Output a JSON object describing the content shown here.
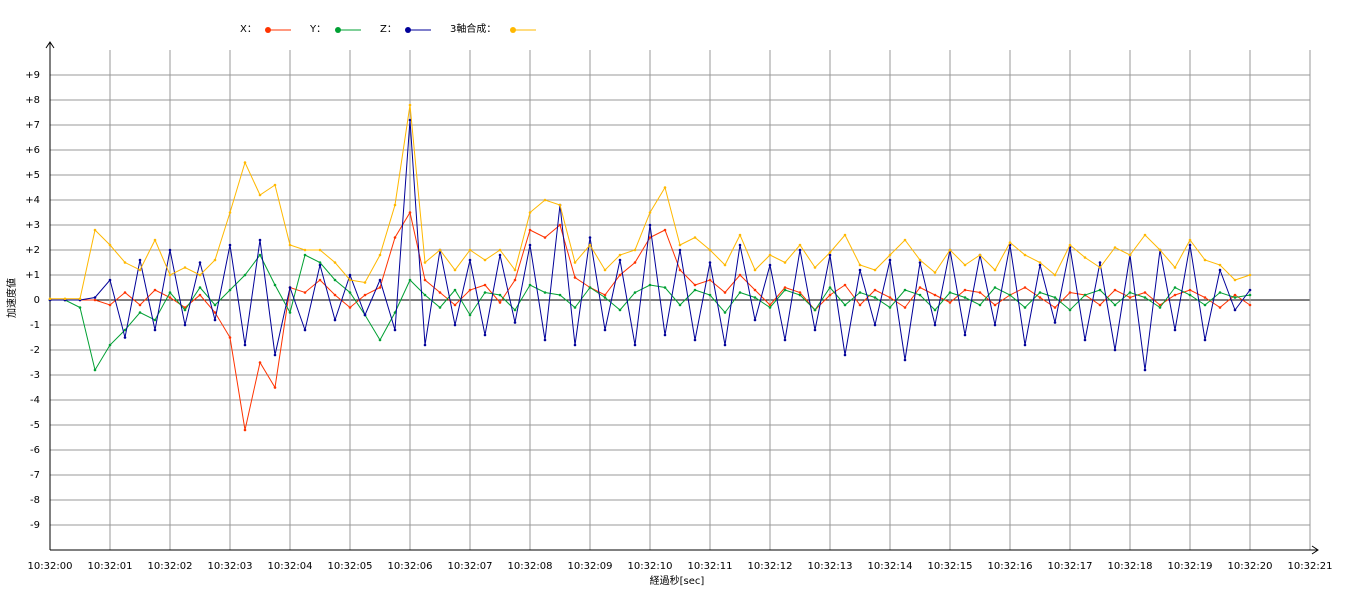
{
  "chart_data": {
    "type": "line",
    "xlabel": "経過秒[sec]",
    "ylabel": "加速度値",
    "x": [
      0,
      0.25,
      0.5,
      0.75,
      1,
      1.25,
      1.5,
      1.75,
      2,
      2.25,
      2.5,
      2.75,
      3,
      3.25,
      3.5,
      3.75,
      4,
      4.25,
      4.5,
      4.75,
      5,
      5.25,
      5.5,
      5.75,
      6,
      6.25,
      6.5,
      6.75,
      7,
      7.25,
      7.5,
      7.75,
      8,
      8.25,
      8.5,
      8.75,
      9,
      9.25,
      9.5,
      9.75,
      10,
      10.25,
      10.5,
      10.75,
      11,
      11.25,
      11.5,
      11.75,
      12,
      12.25,
      12.5,
      12.75,
      13,
      13.25,
      13.5,
      13.75,
      14,
      14.25,
      14.5,
      14.75,
      15,
      15.25,
      15.5,
      15.75,
      16,
      16.25,
      16.5,
      16.75,
      17,
      17.25,
      17.5,
      17.75,
      18,
      18.25,
      18.5,
      18.75,
      19,
      19.25,
      19.5,
      19.75,
      20
    ],
    "series": [
      {
        "name": "X：",
        "color": "#ff3300",
        "values": [
          0,
          0,
          0,
          0,
          -0.2,
          0.3,
          -0.2,
          0.4,
          0.1,
          -0.3,
          0.2,
          -0.5,
          -1.5,
          -5.2,
          -2.5,
          -3.5,
          0.5,
          0.3,
          0.8,
          0.2,
          -0.3,
          0.2,
          0.5,
          2.5,
          3.5,
          0.8,
          0.3,
          -0.2,
          0.4,
          0.6,
          -0.1,
          0.8,
          2.8,
          2.5,
          3.0,
          0.9,
          0.5,
          0.2,
          1.0,
          1.5,
          2.5,
          2.8,
          1.2,
          0.6,
          0.8,
          0.3,
          1.0,
          0.4,
          -0.2,
          0.5,
          0.3,
          -0.4,
          0.2,
          0.6,
          -0.2,
          0.4,
          0.1,
          -0.3,
          0.5,
          0.2,
          -0.1,
          0.4,
          0.3,
          -0.2,
          0.2,
          0.5,
          0.1,
          -0.3,
          0.3,
          0.2,
          -0.2,
          0.4,
          0.1,
          0.3,
          -0.2,
          0.2,
          0.4,
          0.1,
          -0.3,
          0.2,
          -0.2
        ]
      },
      {
        "name": "Y：",
        "color": "#00a033",
        "values": [
          0,
          0,
          -0.3,
          -2.8,
          -1.8,
          -1.2,
          -0.5,
          -0.8,
          0.3,
          -0.4,
          0.5,
          -0.2,
          0.4,
          1.0,
          1.8,
          0.6,
          -0.5,
          1.8,
          1.5,
          0.8,
          0.3,
          -0.6,
          -1.6,
          -0.5,
          0.8,
          0.2,
          -0.3,
          0.4,
          -0.6,
          0.3,
          0.2,
          -0.4,
          0.6,
          0.3,
          0.2,
          -0.3,
          0.5,
          0.1,
          -0.4,
          0.3,
          0.6,
          0.5,
          -0.2,
          0.4,
          0.2,
          -0.5,
          0.3,
          0.1,
          -0.3,
          0.4,
          0.2,
          -0.4,
          0.5,
          -0.2,
          0.3,
          0.1,
          -0.3,
          0.4,
          0.2,
          -0.4,
          0.3,
          0.1,
          -0.2,
          0.5,
          0.2,
          -0.3,
          0.3,
          0.1,
          -0.4,
          0.2,
          0.4,
          -0.2,
          0.3,
          0.1,
          -0.3,
          0.5,
          0.2,
          -0.2,
          0.3,
          0.1,
          0.2
        ]
      },
      {
        "name": "Z：",
        "color": "#000099",
        "values": [
          0,
          0,
          0,
          0.1,
          0.8,
          -1.5,
          1.6,
          -1.2,
          2.0,
          -1.0,
          1.5,
          -0.8,
          2.2,
          -1.8,
          2.4,
          -2.2,
          0.5,
          -1.2,
          1.4,
          -0.8,
          1.0,
          -0.6,
          0.8,
          -1.2,
          7.2,
          -1.8,
          2.0,
          -1.0,
          1.6,
          -1.4,
          1.8,
          -0.9,
          2.2,
          -1.6,
          3.8,
          -1.8,
          2.5,
          -1.2,
          1.6,
          -1.8,
          3.0,
          -1.4,
          2.0,
          -1.6,
          1.5,
          -1.8,
          2.2,
          -0.8,
          1.4,
          -1.6,
          2.0,
          -1.2,
          1.8,
          -2.2,
          1.2,
          -1.0,
          1.6,
          -2.4,
          1.5,
          -1.0,
          2.0,
          -1.4,
          1.8,
          -1.0,
          2.2,
          -1.8,
          1.4,
          -0.9,
          2.1,
          -1.6,
          1.5,
          -2.0,
          1.8,
          -2.8,
          2.0,
          -1.2,
          2.2,
          -1.6,
          1.2,
          -0.4,
          0.4
        ]
      },
      {
        "name": "3軸合成：",
        "color": "#ffb800",
        "values": [
          0.05,
          0.05,
          0.05,
          2.8,
          2.2,
          1.5,
          1.2,
          2.4,
          1.0,
          1.3,
          1.0,
          1.6,
          3.5,
          5.5,
          4.2,
          4.6,
          2.2,
          2.0,
          2.0,
          1.5,
          0.8,
          0.7,
          1.8,
          3.8,
          7.8,
          1.5,
          2.0,
          1.2,
          2.0,
          1.6,
          2.0,
          1.2,
          3.5,
          4.0,
          3.8,
          1.5,
          2.2,
          1.2,
          1.8,
          2.0,
          3.5,
          4.5,
          2.2,
          2.5,
          2.0,
          1.4,
          2.6,
          1.2,
          1.8,
          1.5,
          2.2,
          1.3,
          1.9,
          2.6,
          1.4,
          1.2,
          1.8,
          2.4,
          1.6,
          1.1,
          2.0,
          1.4,
          1.8,
          1.2,
          2.3,
          1.8,
          1.5,
          1.0,
          2.2,
          1.7,
          1.3,
          2.1,
          1.8,
          2.6,
          2.0,
          1.3,
          2.4,
          1.6,
          1.4,
          0.8,
          1.0
        ]
      }
    ],
    "xlim": [
      0,
      21
    ],
    "xticks": [
      {
        "value": 0,
        "label": "10:32:00"
      },
      {
        "value": 1,
        "label": "10:32:01"
      },
      {
        "value": 2,
        "label": "10:32:02"
      },
      {
        "value": 3,
        "label": "10:32:03"
      },
      {
        "value": 4,
        "label": "10:32:04"
      },
      {
        "value": 5,
        "label": "10:32:05"
      },
      {
        "value": 6,
        "label": "10:32:06"
      },
      {
        "value": 7,
        "label": "10:32:07"
      },
      {
        "value": 8,
        "label": "10:32:08"
      },
      {
        "value": 9,
        "label": "10:32:09"
      },
      {
        "value": 10,
        "label": "10:32:10"
      },
      {
        "value": 11,
        "label": "10:32:11"
      },
      {
        "value": 12,
        "label": "10:32:12"
      },
      {
        "value": 13,
        "label": "10:32:13"
      },
      {
        "value": 14,
        "label": "10:32:14"
      },
      {
        "value": 15,
        "label": "10:32:15"
      },
      {
        "value": 16,
        "label": "10:32:16"
      },
      {
        "value": 17,
        "label": "10:32:17"
      },
      {
        "value": 18,
        "label": "10:32:18"
      },
      {
        "value": 19,
        "label": "10:32:19"
      },
      {
        "value": 20,
        "label": "10:32:20"
      },
      {
        "value": 21,
        "label": "10:32:21"
      }
    ],
    "ylim": [
      -10,
      10
    ],
    "yticks": [
      {
        "value": 9,
        "label": "+9"
      },
      {
        "value": 8,
        "label": "+8"
      },
      {
        "value": 7,
        "label": "+7"
      },
      {
        "value": 6,
        "label": "+6"
      },
      {
        "value": 5,
        "label": "+5"
      },
      {
        "value": 4,
        "label": "+4"
      },
      {
        "value": 3,
        "label": "+3"
      },
      {
        "value": 2,
        "label": "+2"
      },
      {
        "value": 1,
        "label": "+1"
      },
      0,
      -1,
      -2,
      -3,
      -4,
      -5,
      -6,
      -7,
      -8,
      -9
    ],
    "grid": true,
    "legend": "top"
  }
}
